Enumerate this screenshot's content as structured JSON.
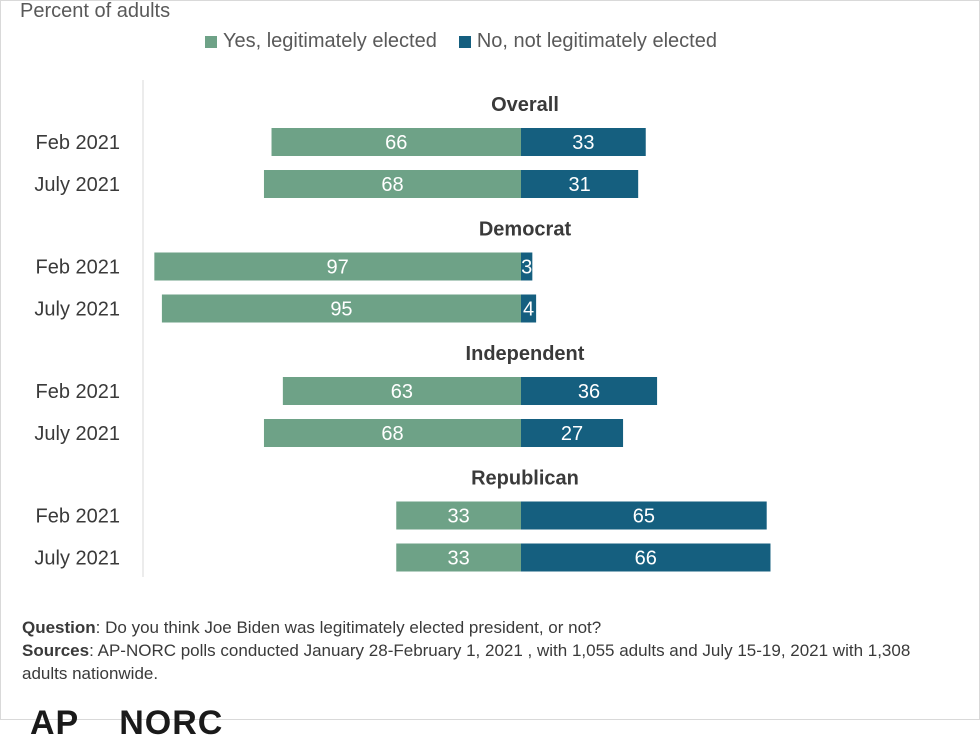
{
  "subtitle": "Percent of adults",
  "legend": {
    "yes": "Yes, legitimately elected",
    "no": "No, not legitimately elected"
  },
  "colors": {
    "yes": "#6ea287",
    "no": "#155f7f"
  },
  "chart_data": {
    "type": "bar",
    "orientation": "horizontal-diverging",
    "title": "",
    "subtitle": "Percent of adults",
    "groups": [
      {
        "name": "Overall",
        "rows": [
          {
            "label": "Feb 2021",
            "yes": 66,
            "no": 33
          },
          {
            "label": "July 2021",
            "yes": 68,
            "no": 31
          }
        ]
      },
      {
        "name": "Democrat",
        "rows": [
          {
            "label": "Feb 2021",
            "yes": 97,
            "no": 3
          },
          {
            "label": "July 2021",
            "yes": 95,
            "no": 4
          }
        ]
      },
      {
        "name": "Independent",
        "rows": [
          {
            "label": "Feb 2021",
            "yes": 63,
            "no": 36
          },
          {
            "label": "July 2021",
            "yes": 68,
            "no": 27
          }
        ]
      },
      {
        "name": "Republican",
        "rows": [
          {
            "label": "Feb 2021",
            "yes": 33,
            "no": 65
          },
          {
            "label": "July 2021",
            "yes": 33,
            "no": 66
          }
        ]
      }
    ],
    "series": [
      {
        "name": "Yes, legitimately elected",
        "key": "yes"
      },
      {
        "name": "No, not legitimately elected",
        "key": "no"
      }
    ],
    "legend_position": "top"
  },
  "notes": {
    "question_label": "Question",
    "question_text": ": Do you think Joe Biden was legitimately elected president, or not?",
    "sources_label": "Sources",
    "sources_text": ": AP-NORC polls conducted January 28-February 1, 2021 , with 1,055 adults  and July 15-19, 2021 with 1,308 adults nationwide."
  },
  "logo": {
    "left": "AP",
    "right": "NORC"
  }
}
